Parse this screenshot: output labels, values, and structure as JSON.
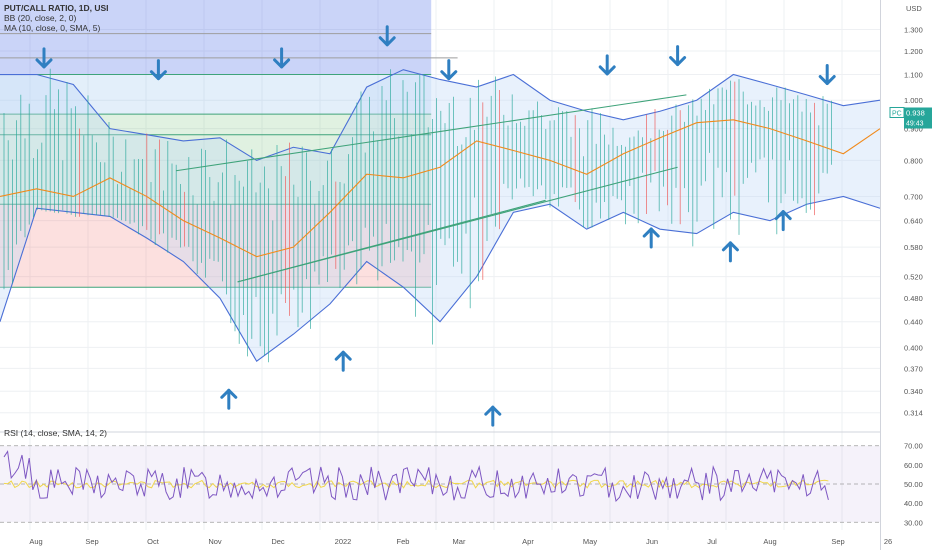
{
  "legend": {
    "symbol": "PUT/CALL RATIO, 1D, USI",
    "bb": "BB (20, close, 2, 0)",
    "ma": "MA (10, close, 0, SMA, 5)",
    "rsi": "RSI (14, close, SMA, 14, 2)"
  },
  "price_badge": {
    "symbol": "PC",
    "value": "0.938",
    "countdown": "49:43",
    "color": "#26a69a"
  },
  "colors": {
    "bb": "#4a6fd6",
    "ma": "#f08a1c",
    "candle_up": "#26a69a",
    "candle_down": "#ef5350",
    "arrow": "#2f7fc1",
    "rsi": "#7e57c2"
  },
  "chart_data": [
    {
      "type": "candlestick",
      "title": "PUT/CALL RATIO, 1D, USI",
      "y_scale": "log",
      "ylabel": "USD",
      "yticks": [
        "1.300",
        "1.200",
        "1.100",
        "1.000",
        "0.900",
        "0.800",
        "0.700",
        "0.640",
        "0.580",
        "0.520",
        "0.480",
        "0.440",
        "0.400",
        "0.370",
        "0.340",
        "0.314"
      ],
      "ylim": [
        0.3,
        1.45
      ],
      "x_ticks": [
        "Aug",
        "Sep",
        "Oct",
        "Nov",
        "Dec",
        "2022",
        "Feb",
        "Mar",
        "Apr",
        "May",
        "Jun",
        "Jul",
        "Aug",
        "Sep",
        "26"
      ],
      "last_value": 0.938,
      "bb_upper": [
        1.1,
        1.1,
        1.06,
        0.9,
        0.88,
        0.86,
        0.87,
        0.8,
        0.84,
        0.82,
        1.05,
        1.12,
        1.08,
        1.05,
        1.1,
        1.0,
        0.96,
        0.93,
        0.96,
        1.0,
        1.1,
        1.06,
        1.02,
        0.98,
        1.0
      ],
      "bb_lower": [
        0.44,
        0.67,
        0.66,
        0.65,
        0.6,
        0.55,
        0.48,
        0.38,
        0.42,
        0.47,
        0.55,
        0.5,
        0.44,
        0.52,
        0.66,
        0.68,
        0.62,
        0.66,
        0.62,
        0.61,
        0.66,
        0.64,
        0.68,
        0.7,
        0.67
      ],
      "ma": [
        0.7,
        0.72,
        0.7,
        0.75,
        0.7,
        0.64,
        0.6,
        0.56,
        0.58,
        0.66,
        0.76,
        0.75,
        0.78,
        0.86,
        0.83,
        0.8,
        0.76,
        0.82,
        0.87,
        0.92,
        0.93,
        0.9,
        0.86,
        0.82,
        0.9
      ],
      "bb_basis": [
        0.62,
        0.66,
        0.64,
        0.66,
        0.64,
        0.61,
        0.58,
        0.54,
        0.56,
        0.62,
        0.7,
        0.72,
        0.72,
        0.78,
        0.82,
        0.78,
        0.74,
        0.8,
        0.84,
        0.9,
        0.92,
        0.9,
        0.86,
        0.84,
        0.86
      ],
      "horizontal_levels": [
        1.28,
        1.17,
        1.1,
        0.95,
        0.88,
        0.68,
        0.5
      ],
      "zones": [
        {
          "from": 1.1,
          "to": 1.45,
          "color": "#4e6fe8",
          "opacity": 0.3
        },
        {
          "from": 0.95,
          "to": 1.1,
          "color": "#7eb6e8",
          "opacity": 0.22
        },
        {
          "from": 0.68,
          "to": 0.95,
          "color": "#66bb6a",
          "opacity": 0.2
        },
        {
          "from": 0.5,
          "to": 0.68,
          "color": "#ef5350",
          "opacity": 0.18
        }
      ],
      "arrows_down": [
        [
          0.05,
          1.17
        ],
        [
          0.18,
          1.12
        ],
        [
          0.32,
          1.17
        ],
        [
          0.44,
          1.27
        ],
        [
          0.51,
          1.12
        ],
        [
          0.69,
          1.14
        ],
        [
          0.77,
          1.18
        ],
        [
          0.94,
          1.1
        ]
      ],
      "arrows_up": [
        [
          0.26,
          0.33
        ],
        [
          0.39,
          0.38
        ],
        [
          0.56,
          0.31
        ],
        [
          0.74,
          0.6
        ],
        [
          0.83,
          0.57
        ],
        [
          0.89,
          0.64
        ]
      ],
      "trendlines": [
        [
          [
            0.2,
            0.77
          ],
          [
            0.78,
            1.02
          ]
        ],
        [
          [
            0.27,
            0.51
          ],
          [
            0.77,
            0.78
          ]
        ],
        [
          [
            0.27,
            0.51
          ],
          [
            0.62,
            0.69
          ]
        ]
      ]
    },
    {
      "type": "line",
      "title": "RSI (14, close, SMA, 14, 2)",
      "yticks": [
        "70.00",
        "60.00",
        "50.00",
        "40.00",
        "30.00"
      ],
      "ylim": [
        27,
        73
      ],
      "bands": [
        70,
        50,
        30
      ]
    }
  ]
}
